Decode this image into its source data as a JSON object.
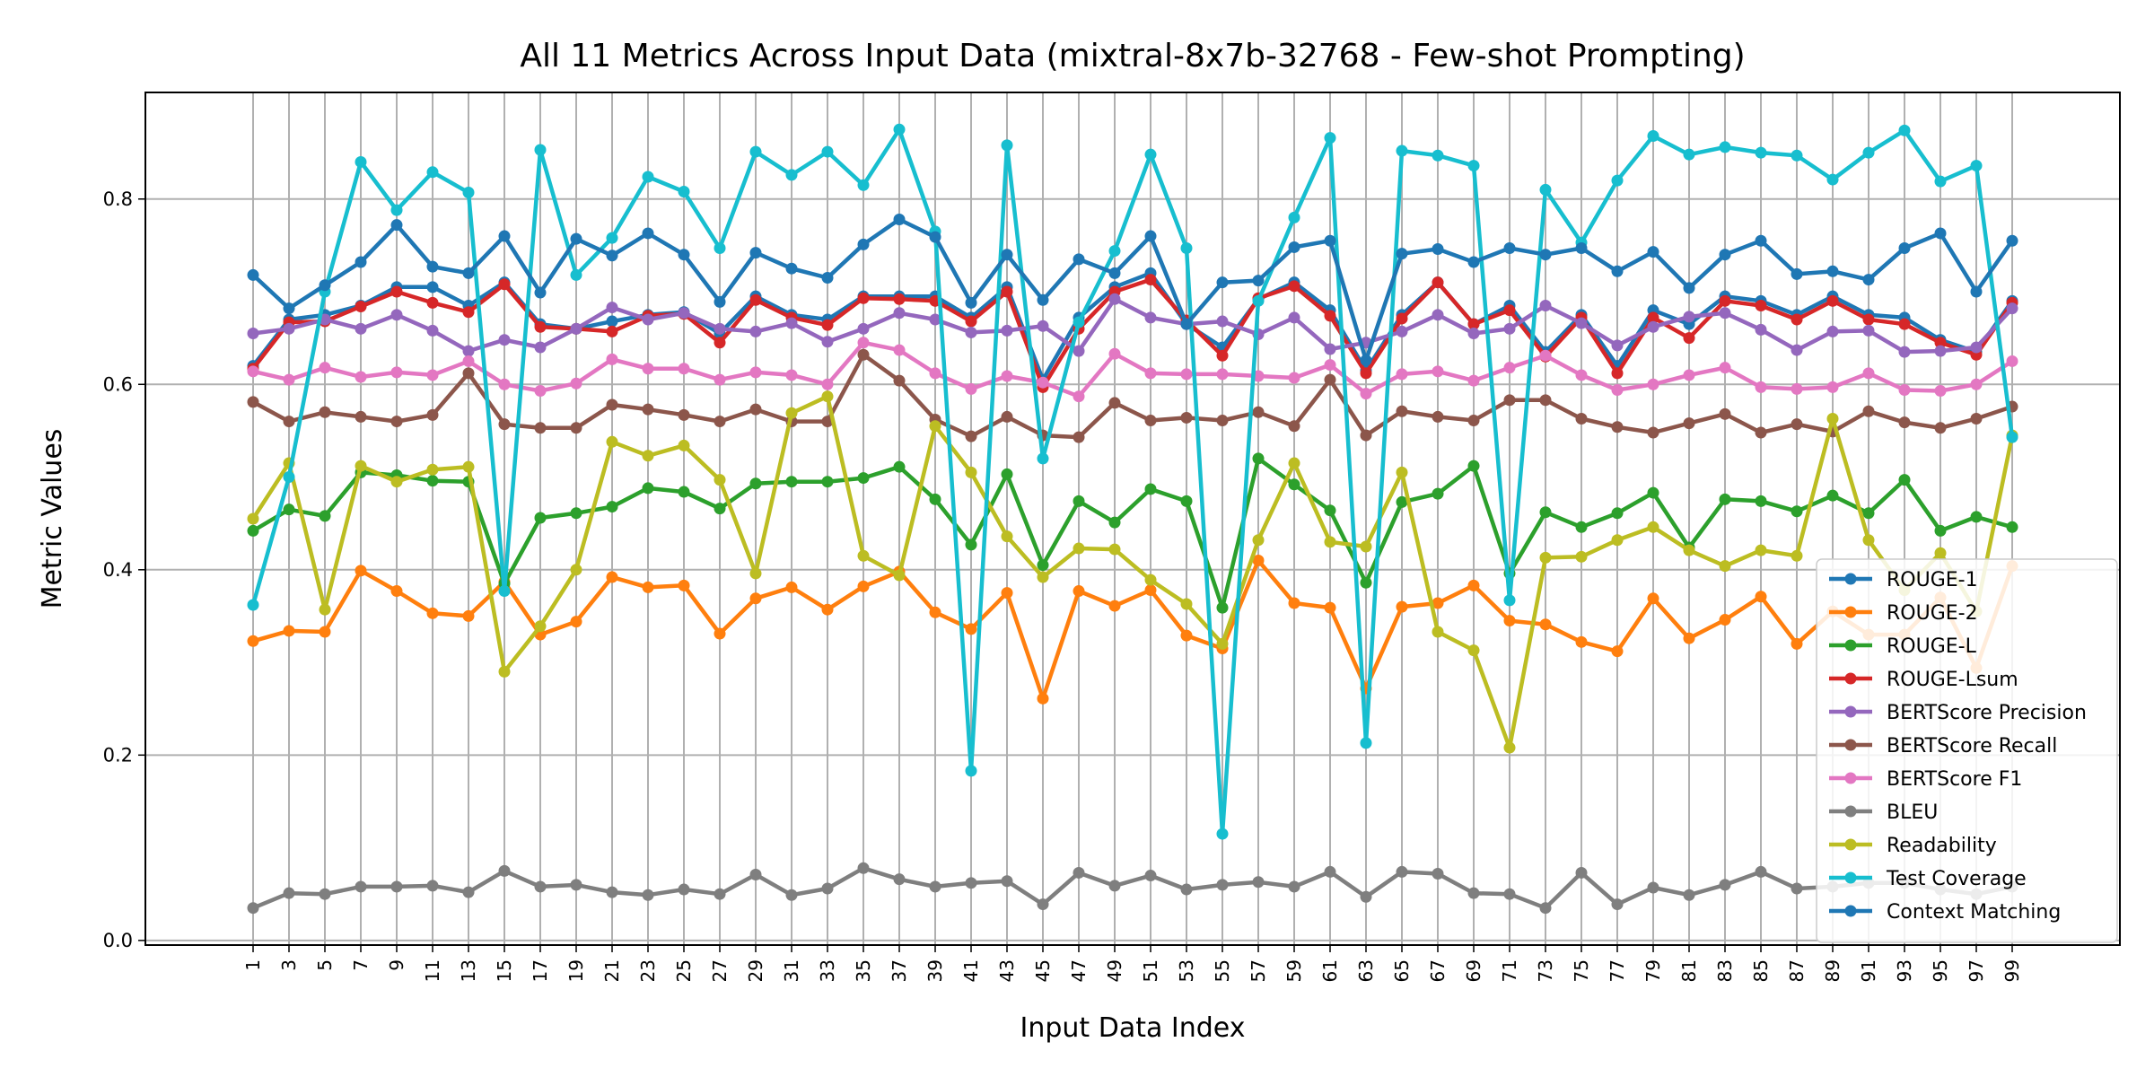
{
  "chart_data": {
    "type": "line",
    "title": "All 11 Metrics Across Input Data (mixtral-8x7b-32768 - Few-shot Prompting)",
    "xlabel": "Input Data Index",
    "ylabel": "Metric Values",
    "x": [
      1,
      3,
      5,
      7,
      9,
      11,
      13,
      15,
      17,
      19,
      21,
      23,
      25,
      27,
      29,
      31,
      33,
      35,
      37,
      39,
      41,
      43,
      45,
      47,
      49,
      51,
      53,
      55,
      57,
      59,
      61,
      63,
      65,
      67,
      69,
      71,
      73,
      75,
      77,
      79,
      81,
      83,
      85,
      87,
      89,
      91,
      93,
      95,
      97,
      99
    ],
    "x_ticks": [
      "1",
      "3",
      "5",
      "7",
      "9",
      "11",
      "13",
      "15",
      "17",
      "19",
      "21",
      "23",
      "25",
      "27",
      "29",
      "31",
      "33",
      "35",
      "37",
      "39",
      "41",
      "43",
      "45",
      "47",
      "49",
      "51",
      "53",
      "55",
      "57",
      "59",
      "61",
      "63",
      "65",
      "67",
      "69",
      "71",
      "73",
      "75",
      "77",
      "79",
      "81",
      "83",
      "85",
      "87",
      "89",
      "91",
      "93",
      "95",
      "97",
      "99"
    ],
    "y_ticks": [
      "0.0",
      "0.2",
      "0.4",
      "0.6",
      "0.8"
    ],
    "xlim": [
      -5,
      105
    ],
    "ylim": [
      -0.005,
      0.915
    ],
    "grid": true,
    "legend_position": "lower-right",
    "series": [
      {
        "name": "ROUGE-1",
        "color": "#1f77b4",
        "values": [
          0.62,
          0.67,
          0.675,
          0.685,
          0.705,
          0.705,
          0.685,
          0.71,
          0.665,
          0.66,
          0.668,
          0.675,
          0.678,
          0.655,
          0.695,
          0.675,
          0.67,
          0.695,
          0.695,
          0.695,
          0.672,
          0.705,
          0.605,
          0.672,
          0.705,
          0.72,
          0.665,
          0.64,
          0.692,
          0.71,
          0.68,
          0.615,
          0.675,
          0.71,
          0.665,
          0.685,
          0.635,
          0.675,
          0.62,
          0.68,
          0.665,
          0.695,
          0.69,
          0.675,
          0.695,
          0.675,
          0.672,
          0.648,
          0.635,
          0.69
        ]
      },
      {
        "name": "ROUGE-2",
        "color": "#ff7f0e",
        "values": [
          0.323,
          0.334,
          0.333,
          0.399,
          0.377,
          0.353,
          0.35,
          0.387,
          0.33,
          0.344,
          0.392,
          0.381,
          0.383,
          0.331,
          0.369,
          0.381,
          0.357,
          0.382,
          0.398,
          0.354,
          0.336,
          0.375,
          0.261,
          0.377,
          0.361,
          0.378,
          0.329,
          0.315,
          0.41,
          0.364,
          0.359,
          0.272,
          0.36,
          0.364,
          0.383,
          0.345,
          0.341,
          0.322,
          0.312,
          0.369,
          0.326,
          0.346,
          0.371,
          0.32,
          0.355,
          0.33,
          0.33,
          0.37,
          0.294,
          0.404
        ]
      },
      {
        "name": "ROUGE-L",
        "color": "#2ca02c",
        "values": [
          0.442,
          0.465,
          0.458,
          0.505,
          0.502,
          0.496,
          0.495,
          0.385,
          0.456,
          0.461,
          0.468,
          0.488,
          0.484,
          0.466,
          0.493,
          0.495,
          0.495,
          0.499,
          0.511,
          0.476,
          0.427,
          0.503,
          0.405,
          0.474,
          0.451,
          0.487,
          0.474,
          0.359,
          0.52,
          0.492,
          0.464,
          0.386,
          0.473,
          0.482,
          0.512,
          0.396,
          0.462,
          0.446,
          0.461,
          0.483,
          0.424,
          0.476,
          0.474,
          0.463,
          0.48,
          0.461,
          0.497,
          0.442,
          0.457,
          0.446
        ]
      },
      {
        "name": "ROUGE-Lsum",
        "color": "#d62728",
        "values": [
          0.617,
          0.667,
          0.668,
          0.684,
          0.7,
          0.688,
          0.678,
          0.708,
          0.662,
          0.66,
          0.657,
          0.674,
          0.676,
          0.645,
          0.691,
          0.672,
          0.664,
          0.693,
          0.692,
          0.69,
          0.668,
          0.7,
          0.597,
          0.66,
          0.7,
          0.713,
          0.669,
          0.631,
          0.693,
          0.706,
          0.674,
          0.612,
          0.671,
          0.71,
          0.665,
          0.68,
          0.63,
          0.672,
          0.612,
          0.672,
          0.65,
          0.69,
          0.685,
          0.67,
          0.69,
          0.67,
          0.665,
          0.645,
          0.632,
          0.688
        ]
      },
      {
        "name": "BERTScore Precision",
        "color": "#9467bd",
        "values": [
          0.655,
          0.66,
          0.67,
          0.66,
          0.675,
          0.658,
          0.636,
          0.648,
          0.64,
          0.66,
          0.683,
          0.67,
          0.677,
          0.66,
          0.657,
          0.666,
          0.646,
          0.66,
          0.677,
          0.67,
          0.656,
          0.658,
          0.663,
          0.636,
          0.692,
          0.672,
          0.665,
          0.668,
          0.654,
          0.672,
          0.638,
          0.645,
          0.657,
          0.675,
          0.655,
          0.66,
          0.685,
          0.666,
          0.642,
          0.662,
          0.673,
          0.677,
          0.659,
          0.637,
          0.657,
          0.658,
          0.635,
          0.636,
          0.64,
          0.682
        ]
      },
      {
        "name": "BERTScore Recall",
        "color": "#8c564b",
        "values": [
          0.581,
          0.56,
          0.57,
          0.565,
          0.56,
          0.567,
          0.612,
          0.557,
          0.553,
          0.553,
          0.578,
          0.573,
          0.567,
          0.56,
          0.573,
          0.56,
          0.56,
          0.632,
          0.604,
          0.562,
          0.544,
          0.565,
          0.545,
          0.543,
          0.58,
          0.561,
          0.564,
          0.561,
          0.57,
          0.555,
          0.605,
          0.545,
          0.571,
          0.565,
          0.561,
          0.583,
          0.583,
          0.563,
          0.554,
          0.548,
          0.558,
          0.568,
          0.548,
          0.557,
          0.549,
          0.571,
          0.559,
          0.553,
          0.563,
          0.576
        ]
      },
      {
        "name": "BERTScore F1",
        "color": "#e377c2",
        "values": [
          0.614,
          0.605,
          0.618,
          0.608,
          0.613,
          0.61,
          0.625,
          0.6,
          0.593,
          0.601,
          0.627,
          0.617,
          0.617,
          0.605,
          0.613,
          0.61,
          0.6,
          0.645,
          0.637,
          0.612,
          0.595,
          0.609,
          0.602,
          0.587,
          0.633,
          0.612,
          0.611,
          0.611,
          0.609,
          0.607,
          0.621,
          0.59,
          0.611,
          0.614,
          0.604,
          0.618,
          0.631,
          0.61,
          0.594,
          0.6,
          0.61,
          0.618,
          0.597,
          0.595,
          0.597,
          0.612,
          0.594,
          0.593,
          0.6,
          0.625
        ]
      },
      {
        "name": "BLEU",
        "color": "#7f7f7f",
        "values": [
          0.035,
          0.051,
          0.05,
          0.058,
          0.058,
          0.059,
          0.052,
          0.075,
          0.058,
          0.06,
          0.052,
          0.049,
          0.055,
          0.05,
          0.071,
          0.049,
          0.056,
          0.078,
          0.066,
          0.058,
          0.062,
          0.064,
          0.039,
          0.073,
          0.059,
          0.07,
          0.055,
          0.06,
          0.063,
          0.058,
          0.074,
          0.047,
          0.074,
          0.072,
          0.051,
          0.05,
          0.035,
          0.073,
          0.039,
          0.057,
          0.049,
          0.06,
          0.074,
          0.056,
          0.058,
          0.062,
          0.062,
          0.055,
          0.05,
          0.058
        ]
      },
      {
        "name": "Readability",
        "color": "#bcbd22",
        "values": [
          0.455,
          0.515,
          0.357,
          0.512,
          0.495,
          0.508,
          0.511,
          0.29,
          0.339,
          0.4,
          0.538,
          0.523,
          0.534,
          0.497,
          0.396,
          0.569,
          0.587,
          0.415,
          0.394,
          0.555,
          0.505,
          0.436,
          0.392,
          0.423,
          0.422,
          0.389,
          0.363,
          0.32,
          0.432,
          0.515,
          0.43,
          0.425,
          0.505,
          0.333,
          0.313,
          0.208,
          0.413,
          0.414,
          0.432,
          0.446,
          0.421,
          0.404,
          0.421,
          0.415,
          0.563,
          0.432,
          0.378,
          0.418,
          0.355,
          0.545
        ]
      },
      {
        "name": "Test Coverage",
        "color": "#17becf",
        "values": [
          0.362,
          0.5,
          0.7,
          0.84,
          0.788,
          0.829,
          0.807,
          0.377,
          0.853,
          0.718,
          0.758,
          0.824,
          0.808,
          0.747,
          0.851,
          0.826,
          0.851,
          0.815,
          0.875,
          0.765,
          0.183,
          0.858,
          0.52,
          0.667,
          0.744,
          0.848,
          0.747,
          0.115,
          0.69,
          0.78,
          0.866,
          0.213,
          0.852,
          0.847,
          0.836,
          0.367,
          0.81,
          0.753,
          0.82,
          0.868,
          0.848,
          0.856,
          0.85,
          0.847,
          0.821,
          0.85,
          0.874,
          0.819,
          0.836,
          0.543
        ]
      },
      {
        "name": "Context Matching",
        "color": "#1f77b4",
        "values": [
          0.718,
          0.682,
          0.707,
          0.732,
          0.772,
          0.727,
          0.72,
          0.76,
          0.699,
          0.757,
          0.739,
          0.763,
          0.74,
          0.689,
          0.742,
          0.725,
          0.715,
          0.751,
          0.778,
          0.759,
          0.688,
          0.74,
          0.691,
          0.735,
          0.72,
          0.76,
          0.665,
          0.71,
          0.712,
          0.748,
          0.755,
          0.626,
          0.741,
          0.746,
          0.732,
          0.747,
          0.74,
          0.747,
          0.722,
          0.743,
          0.704,
          0.74,
          0.755,
          0.719,
          0.722,
          0.713,
          0.747,
          0.763,
          0.7,
          0.755
        ]
      }
    ]
  }
}
